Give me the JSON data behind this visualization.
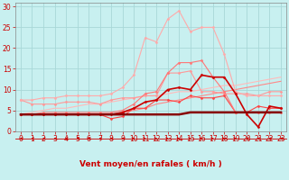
{
  "xlabel": "Vent moyen/en rafales ( km/h )",
  "bg_color": "#c8f0f0",
  "grid_color": "#a8d8d8",
  "xlim": [
    -0.5,
    23.5
  ],
  "ylim": [
    0,
    31
  ],
  "yticks": [
    0,
    5,
    10,
    15,
    20,
    25,
    30
  ],
  "xticks": [
    0,
    1,
    2,
    3,
    4,
    5,
    6,
    7,
    8,
    9,
    10,
    11,
    12,
    13,
    14,
    15,
    16,
    17,
    18,
    19,
    20,
    21,
    22,
    23
  ],
  "x": [
    0,
    1,
    2,
    3,
    4,
    5,
    6,
    7,
    8,
    9,
    10,
    11,
    12,
    13,
    14,
    15,
    16,
    17,
    18,
    19,
    20,
    21,
    22,
    23
  ],
  "lines": [
    {
      "y": [
        7.5,
        6.5,
        6.5,
        6.5,
        7.0,
        7.0,
        7.0,
        6.5,
        7.5,
        8.0,
        8.0,
        8.5,
        8.5,
        14.0,
        14.0,
        14.5,
        9.5,
        9.5,
        9.0,
        9.0,
        9.0,
        8.5,
        9.5,
        9.5
      ],
      "color": "#ff9999",
      "lw": 0.8,
      "marker": "D",
      "ms": 1.5,
      "zorder": 3,
      "linestyle": "-"
    },
    {
      "y": [
        4.0,
        4.0,
        4.0,
        4.0,
        4.0,
        4.0,
        4.0,
        4.0,
        4.0,
        4.5,
        5.5,
        7.0,
        7.5,
        10.0,
        10.5,
        10.0,
        13.5,
        13.0,
        13.0,
        9.0,
        4.0,
        1.0,
        6.0,
        5.5
      ],
      "color": "#cc0000",
      "lw": 1.2,
      "marker": "D",
      "ms": 1.5,
      "zorder": 4,
      "linestyle": "-"
    },
    {
      "y": [
        4.0,
        4.0,
        4.0,
        4.0,
        4.0,
        4.0,
        4.0,
        4.0,
        3.0,
        3.5,
        5.5,
        5.5,
        7.5,
        7.5,
        7.0,
        8.5,
        8.0,
        8.0,
        8.5,
        4.5,
        4.5,
        6.0,
        5.5,
        5.5
      ],
      "color": "#ff4444",
      "lw": 0.8,
      "marker": "D",
      "ms": 1.5,
      "zorder": 3,
      "linestyle": "-"
    },
    {
      "y": [
        4.0,
        4.5,
        5.0,
        5.5,
        5.5,
        6.0,
        6.5,
        6.5,
        7.0,
        7.5,
        8.0,
        8.5,
        8.5,
        9.0,
        9.5,
        9.5,
        10.0,
        10.5,
        11.0,
        11.0,
        11.5,
        12.0,
        12.5,
        13.0
      ],
      "color": "#ffbbbb",
      "lw": 0.8,
      "marker": null,
      "ms": 0,
      "zorder": 2,
      "linestyle": "-"
    },
    {
      "y": [
        4.0,
        4.0,
        4.0,
        4.0,
        4.0,
        4.0,
        4.0,
        4.0,
        4.0,
        4.5,
        5.0,
        5.5,
        6.5,
        7.0,
        7.5,
        8.0,
        8.5,
        9.0,
        9.5,
        10.0,
        10.5,
        11.0,
        11.5,
        12.0
      ],
      "color": "#ff8888",
      "lw": 0.8,
      "marker": null,
      "ms": 0,
      "zorder": 2,
      "linestyle": "-"
    },
    {
      "y": [
        7.5,
        7.5,
        8.0,
        8.0,
        8.5,
        8.5,
        8.5,
        8.5,
        9.0,
        10.5,
        13.5,
        22.5,
        21.5,
        27.0,
        29.0,
        24.0,
        25.0,
        25.0,
        18.5,
        9.5,
        8.5,
        8.5,
        8.5,
        8.5
      ],
      "color": "#ffaaaa",
      "lw": 0.8,
      "marker": "D",
      "ms": 1.5,
      "zorder": 3,
      "linestyle": "-"
    },
    {
      "y": [
        4.0,
        4.0,
        4.5,
        4.5,
        4.5,
        4.5,
        4.5,
        4.5,
        4.5,
        5.0,
        6.5,
        9.0,
        9.5,
        14.0,
        16.5,
        16.5,
        17.0,
        13.0,
        9.5,
        4.5,
        4.5,
        4.5,
        4.5,
        4.5
      ],
      "color": "#ff7777",
      "lw": 0.8,
      "marker": "D",
      "ms": 1.5,
      "zorder": 3,
      "linestyle": "-"
    },
    {
      "y": [
        4.0,
        4.0,
        4.0,
        4.0,
        4.0,
        4.0,
        4.0,
        4.0,
        4.0,
        4.0,
        4.0,
        4.0,
        4.0,
        4.0,
        4.0,
        4.5,
        4.5,
        4.5,
        4.5,
        4.5,
        4.5,
        4.5,
        4.5,
        4.5
      ],
      "color": "#880000",
      "lw": 1.8,
      "marker": null,
      "ms": 0,
      "zorder": 5,
      "linestyle": "-"
    }
  ],
  "arrows_directions": [
    "left",
    "left",
    "left",
    "left",
    "left",
    "left",
    "left",
    "left",
    "left",
    "left",
    "right",
    "right",
    "right",
    "right",
    "right",
    "right",
    "right",
    "right",
    "right",
    "right",
    "left",
    "left",
    "left",
    "left"
  ],
  "arrow_color": "#cc0000",
  "tick_color": "#cc0000",
  "label_color": "#cc0000",
  "xlabel_fontsize": 6.5,
  "tick_fontsize": 5.5
}
